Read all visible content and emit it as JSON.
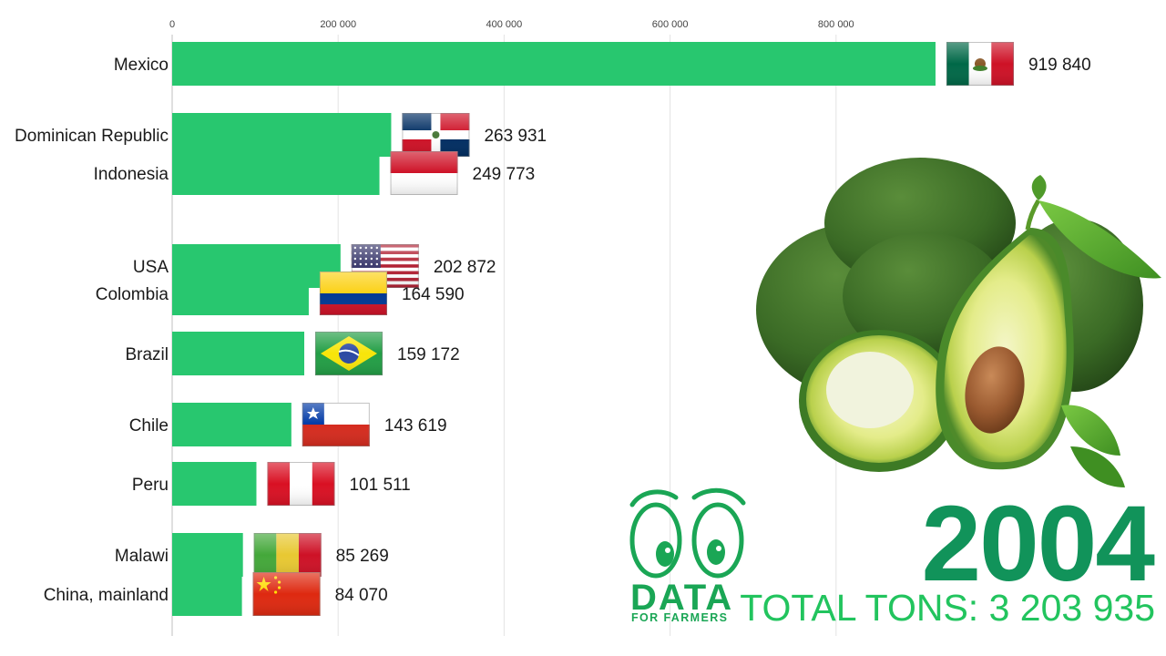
{
  "chart_data": {
    "type": "bar",
    "orientation": "horizontal",
    "xlim": [
      0,
      1000000
    ],
    "ticks": [
      0,
      200000,
      400000,
      600000,
      800000
    ],
    "tick_labels": [
      "0",
      "200 000",
      "400 000",
      "600 000",
      "800 000"
    ],
    "grid": true,
    "bar_color": "#28c76f",
    "categories": [
      "Mexico",
      "Dominican Republic",
      "Indonesia",
      "USA",
      "Colombia",
      "Brazil",
      "Chile",
      "Peru",
      "Malawi",
      "China, mainland"
    ],
    "values": [
      919840,
      263931,
      249773,
      202872,
      164590,
      159172,
      143619,
      101511,
      85269,
      84070
    ],
    "value_labels": [
      "919 840",
      "263 931",
      "249 773",
      "202 872",
      "164 590",
      "159 172",
      "143 619",
      "101 511",
      "85 269",
      "84 070"
    ]
  },
  "flags": [
    "mexico-flag-icon",
    "dominican-republic-flag-icon",
    "indonesia-flag-icon",
    "usa-flag-icon",
    "colombia-flag-icon",
    "brazil-flag-icon",
    "chile-flag-icon",
    "peru-flag-icon",
    "malawi-flag-icon",
    "china-flag-icon"
  ],
  "year": "2004",
  "total": "TOTAL TONS: 3 203 935",
  "logo": {
    "word": "DATA",
    "sub": "FOR FARMERS",
    "color": "#1aa655"
  },
  "colors": {
    "year": "#11935a",
    "total": "#22c45e"
  }
}
